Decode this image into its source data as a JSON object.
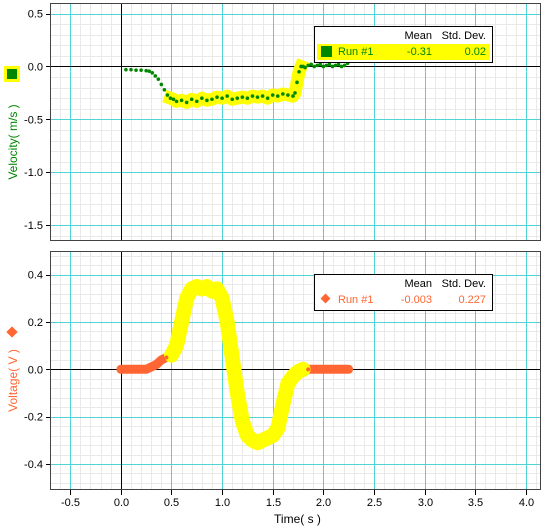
{
  "chart_data": [
    {
      "type": "scatter",
      "title": "",
      "xlabel": "Time( s )",
      "ylabel": "Velocity( m/s )",
      "xlim": [
        -0.7,
        4.15
      ],
      "ylim": [
        -1.65,
        0.6
      ],
      "x_ticks": [
        "-0.5",
        "0.0",
        "0.5",
        "1.0",
        "1.5",
        "2.0",
        "2.5",
        "3.0",
        "3.5",
        "4.0"
      ],
      "y_ticks": [
        "0.5",
        "0.0",
        "-0.5",
        "-1.0",
        "-1.5"
      ],
      "y_tick_values": [
        0.5,
        0.0,
        -0.5,
        -1.0,
        -1.5
      ],
      "grid": true,
      "series": [
        {
          "name": "Run #1",
          "color": "#008800",
          "highlight_color": "#ffff00",
          "x": [
            0.05,
            0.1,
            0.15,
            0.2,
            0.25,
            0.28,
            0.31,
            0.34,
            0.37,
            0.4,
            0.43,
            0.46,
            0.49,
            0.52,
            0.55,
            0.6,
            0.65,
            0.7,
            0.75,
            0.8,
            0.85,
            0.9,
            0.95,
            1.0,
            1.05,
            1.1,
            1.15,
            1.2,
            1.25,
            1.3,
            1.35,
            1.4,
            1.45,
            1.5,
            1.55,
            1.6,
            1.65,
            1.7,
            1.72,
            1.74,
            1.76,
            1.78,
            1.8,
            1.82,
            1.85,
            1.88,
            1.91,
            1.94,
            1.97,
            2.0,
            2.03,
            2.06,
            2.09,
            2.12,
            2.15,
            2.18,
            2.21,
            2.24
          ],
          "y": [
            -0.03,
            -0.03,
            -0.035,
            -0.035,
            -0.04,
            -0.045,
            -0.06,
            -0.09,
            -0.12,
            -0.17,
            -0.22,
            -0.27,
            -0.3,
            -0.31,
            -0.33,
            -0.32,
            -0.34,
            -0.31,
            -0.33,
            -0.3,
            -0.32,
            -0.31,
            -0.29,
            -0.3,
            -0.28,
            -0.31,
            -0.3,
            -0.29,
            -0.3,
            -0.28,
            -0.29,
            -0.28,
            -0.3,
            -0.27,
            -0.28,
            -0.26,
            -0.27,
            -0.28,
            -0.25,
            -0.15,
            -0.05,
            0.0,
            0.0,
            -0.01,
            0.01,
            0.02,
            0.0,
            0.01,
            0.02,
            0.0,
            0.01,
            0.02,
            0.0,
            0.01,
            0.02,
            0.0,
            0.01,
            0.03
          ],
          "highlight_x_range": [
            0.47,
            1.78
          ]
        }
      ],
      "legend": {
        "placement": "top-right",
        "headers": [
          "Mean",
          "Std. Dev."
        ],
        "run_label": "Run #1",
        "mean": "-0.31",
        "std_dev": "0.02"
      }
    },
    {
      "type": "scatter",
      "title": "",
      "xlabel": "Time( s )",
      "ylabel": "Voltage( V )",
      "xlim": [
        -0.7,
        4.15
      ],
      "ylim": [
        -0.51,
        0.5
      ],
      "x_ticks": [
        "-0.5",
        "0.0",
        "0.5",
        "1.0",
        "1.5",
        "2.0",
        "2.5",
        "3.0",
        "3.5",
        "4.0"
      ],
      "y_ticks": [
        "0.4",
        "0.2",
        "0.0",
        "-0.2",
        "-0.4"
      ],
      "y_tick_values": [
        0.4,
        0.2,
        0.0,
        -0.2,
        -0.4
      ],
      "grid": true,
      "series": [
        {
          "name": "Run #1",
          "color": "#ff6633",
          "highlight_color": "#ffff00",
          "x": [
            0.0,
            0.05,
            0.1,
            0.15,
            0.2,
            0.25,
            0.3,
            0.35,
            0.4,
            0.45,
            0.5,
            0.55,
            0.6,
            0.65,
            0.7,
            0.75,
            0.8,
            0.85,
            0.9,
            0.95,
            1.0,
            1.05,
            1.1,
            1.15,
            1.2,
            1.25,
            1.3,
            1.35,
            1.4,
            1.45,
            1.5,
            1.55,
            1.6,
            1.65,
            1.7,
            1.75,
            1.8,
            1.85,
            1.9,
            1.95,
            2.0,
            2.05,
            2.1,
            2.15,
            2.2,
            2.25
          ],
          "y": [
            0.0,
            0.0,
            0.0,
            0.0,
            0.0,
            0.0,
            0.01,
            0.02,
            0.04,
            0.05,
            0.06,
            0.1,
            0.2,
            0.3,
            0.34,
            0.35,
            0.34,
            0.35,
            0.33,
            0.34,
            0.3,
            0.2,
            0.05,
            -0.1,
            -0.22,
            -0.28,
            -0.3,
            -0.31,
            -0.3,
            -0.29,
            -0.28,
            -0.25,
            -0.15,
            -0.06,
            -0.03,
            -0.01,
            0.0,
            0.0,
            0.0,
            0.0,
            0.0,
            0.0,
            0.0,
            0.0,
            0.0,
            0.0
          ],
          "highlight_x_range": [
            0.47,
            1.83
          ]
        }
      ],
      "legend": {
        "placement": "top-right",
        "headers": [
          "Mean",
          "Std. Dev."
        ],
        "run_label": "Run #1",
        "mean": "-0.003",
        "std_dev": "0.227"
      }
    }
  ]
}
